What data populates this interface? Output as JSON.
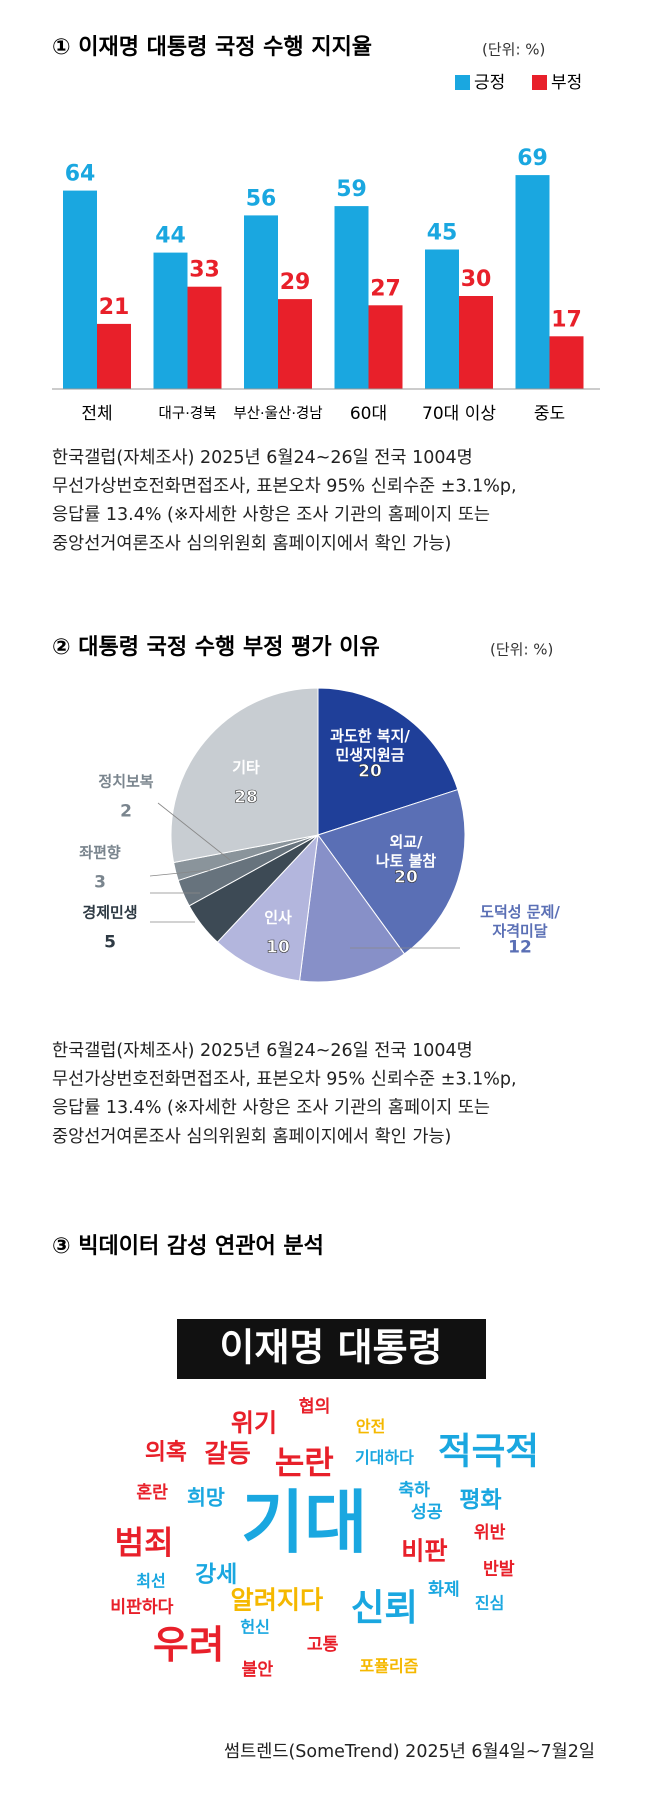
{
  "chart_data": [
    {
      "type": "bar",
      "title": "① 이재명 대통령 국정 수행 지지율",
      "unit": "(단위: %)",
      "categories": [
        "전체",
        "대구·경북",
        "부산·울산·경남",
        "60대",
        "70대 이상",
        "중도"
      ],
      "series": [
        {
          "name": "긍정",
          "color": "#1aa7e0",
          "values": [
            64,
            44,
            56,
            59,
            45,
            69
          ]
        },
        {
          "name": "부정",
          "color": "#e8202a",
          "values": [
            21,
            33,
            29,
            27,
            30,
            17
          ]
        }
      ],
      "ylim": [
        0,
        75
      ],
      "legend": "top-right",
      "note": [
        "한국갤럽(자체조사) 2025년 6월24~26일 전국 1004명",
        "무선가상번호전화면접조사, 표본오차 95% 신뢰수준 ±3.1%p,",
        "응답률 13.4% (※자세한 사항은 조사 기관의 홈페이지 또는",
        "중앙선거여론조사 심의위원회 홈페이지에서 확인 가능)"
      ]
    },
    {
      "type": "pie",
      "title": "② 대통령 국정 수행 부정 평가 이유",
      "unit": "(단위: %)",
      "categories": [
        "과도한 복지/\n민생지원금",
        "외교/\n나토 불참",
        "도덕성 문제/\n자격미달",
        "인사",
        "경제민생",
        "좌편향",
        "정치보복",
        "기타"
      ],
      "values": [
        20,
        20,
        12,
        10,
        5,
        3,
        2,
        28
      ],
      "colors": [
        "#1f3f99",
        "#5a6fb5",
        "#8790c8",
        "#b3b6dd",
        "#3d4a55",
        "#67737d",
        "#8a949b",
        "#c8cdd2"
      ],
      "note": [
        "한국갤럽(자체조사) 2025년 6월24~26일 전국 1004명",
        "무선가상번호전화면접조사, 표본오차 95% 신뢰수준 ±3.1%p,",
        "응답률 13.4% (※자세한 사항은 조사 기관의 홈페이지 또는",
        "중앙선거여론조사 심의위원회 홈페이지에서 확인 가능)"
      ]
    }
  ],
  "wordcloud": {
    "title": "③ 빅데이터 감성 연관어 분석",
    "heading": "이재명 대통령",
    "words": [
      {
        "text": "위기",
        "color": "#e8202a"
      },
      {
        "text": "협의",
        "color": "#e8202a"
      },
      {
        "text": "안전",
        "color": "#f5b800"
      },
      {
        "text": "의혹",
        "color": "#e8202a"
      },
      {
        "text": "갈등",
        "color": "#e8202a"
      },
      {
        "text": "논란",
        "color": "#e8202a"
      },
      {
        "text": "기대하다",
        "color": "#1aa7e0"
      },
      {
        "text": "적극적",
        "color": "#1aa7e0"
      },
      {
        "text": "혼란",
        "color": "#e8202a"
      },
      {
        "text": "희망",
        "color": "#1aa7e0"
      },
      {
        "text": "기대",
        "color": "#1aa7e0"
      },
      {
        "text": "축하",
        "color": "#1aa7e0"
      },
      {
        "text": "평화",
        "color": "#1aa7e0"
      },
      {
        "text": "성공",
        "color": "#1aa7e0"
      },
      {
        "text": "범죄",
        "color": "#e8202a"
      },
      {
        "text": "위반",
        "color": "#e8202a"
      },
      {
        "text": "비판",
        "color": "#e8202a"
      },
      {
        "text": "반발",
        "color": "#e8202a"
      },
      {
        "text": "강세",
        "color": "#1aa7e0"
      },
      {
        "text": "최선",
        "color": "#1aa7e0"
      },
      {
        "text": "알려지다",
        "color": "#f5b800"
      },
      {
        "text": "화제",
        "color": "#1aa7e0"
      },
      {
        "text": "신뢰",
        "color": "#1aa7e0"
      },
      {
        "text": "비판하다",
        "color": "#e8202a"
      },
      {
        "text": "진심",
        "color": "#1aa7e0"
      },
      {
        "text": "헌신",
        "color": "#1aa7e0"
      },
      {
        "text": "우려",
        "color": "#e8202a"
      },
      {
        "text": "고통",
        "color": "#e8202a"
      },
      {
        "text": "불안",
        "color": "#e8202a"
      },
      {
        "text": "포퓰리즘",
        "color": "#f5b800"
      }
    ],
    "source": "썸트렌드(SomeTrend) 2025년 6월4일~7월2일"
  }
}
